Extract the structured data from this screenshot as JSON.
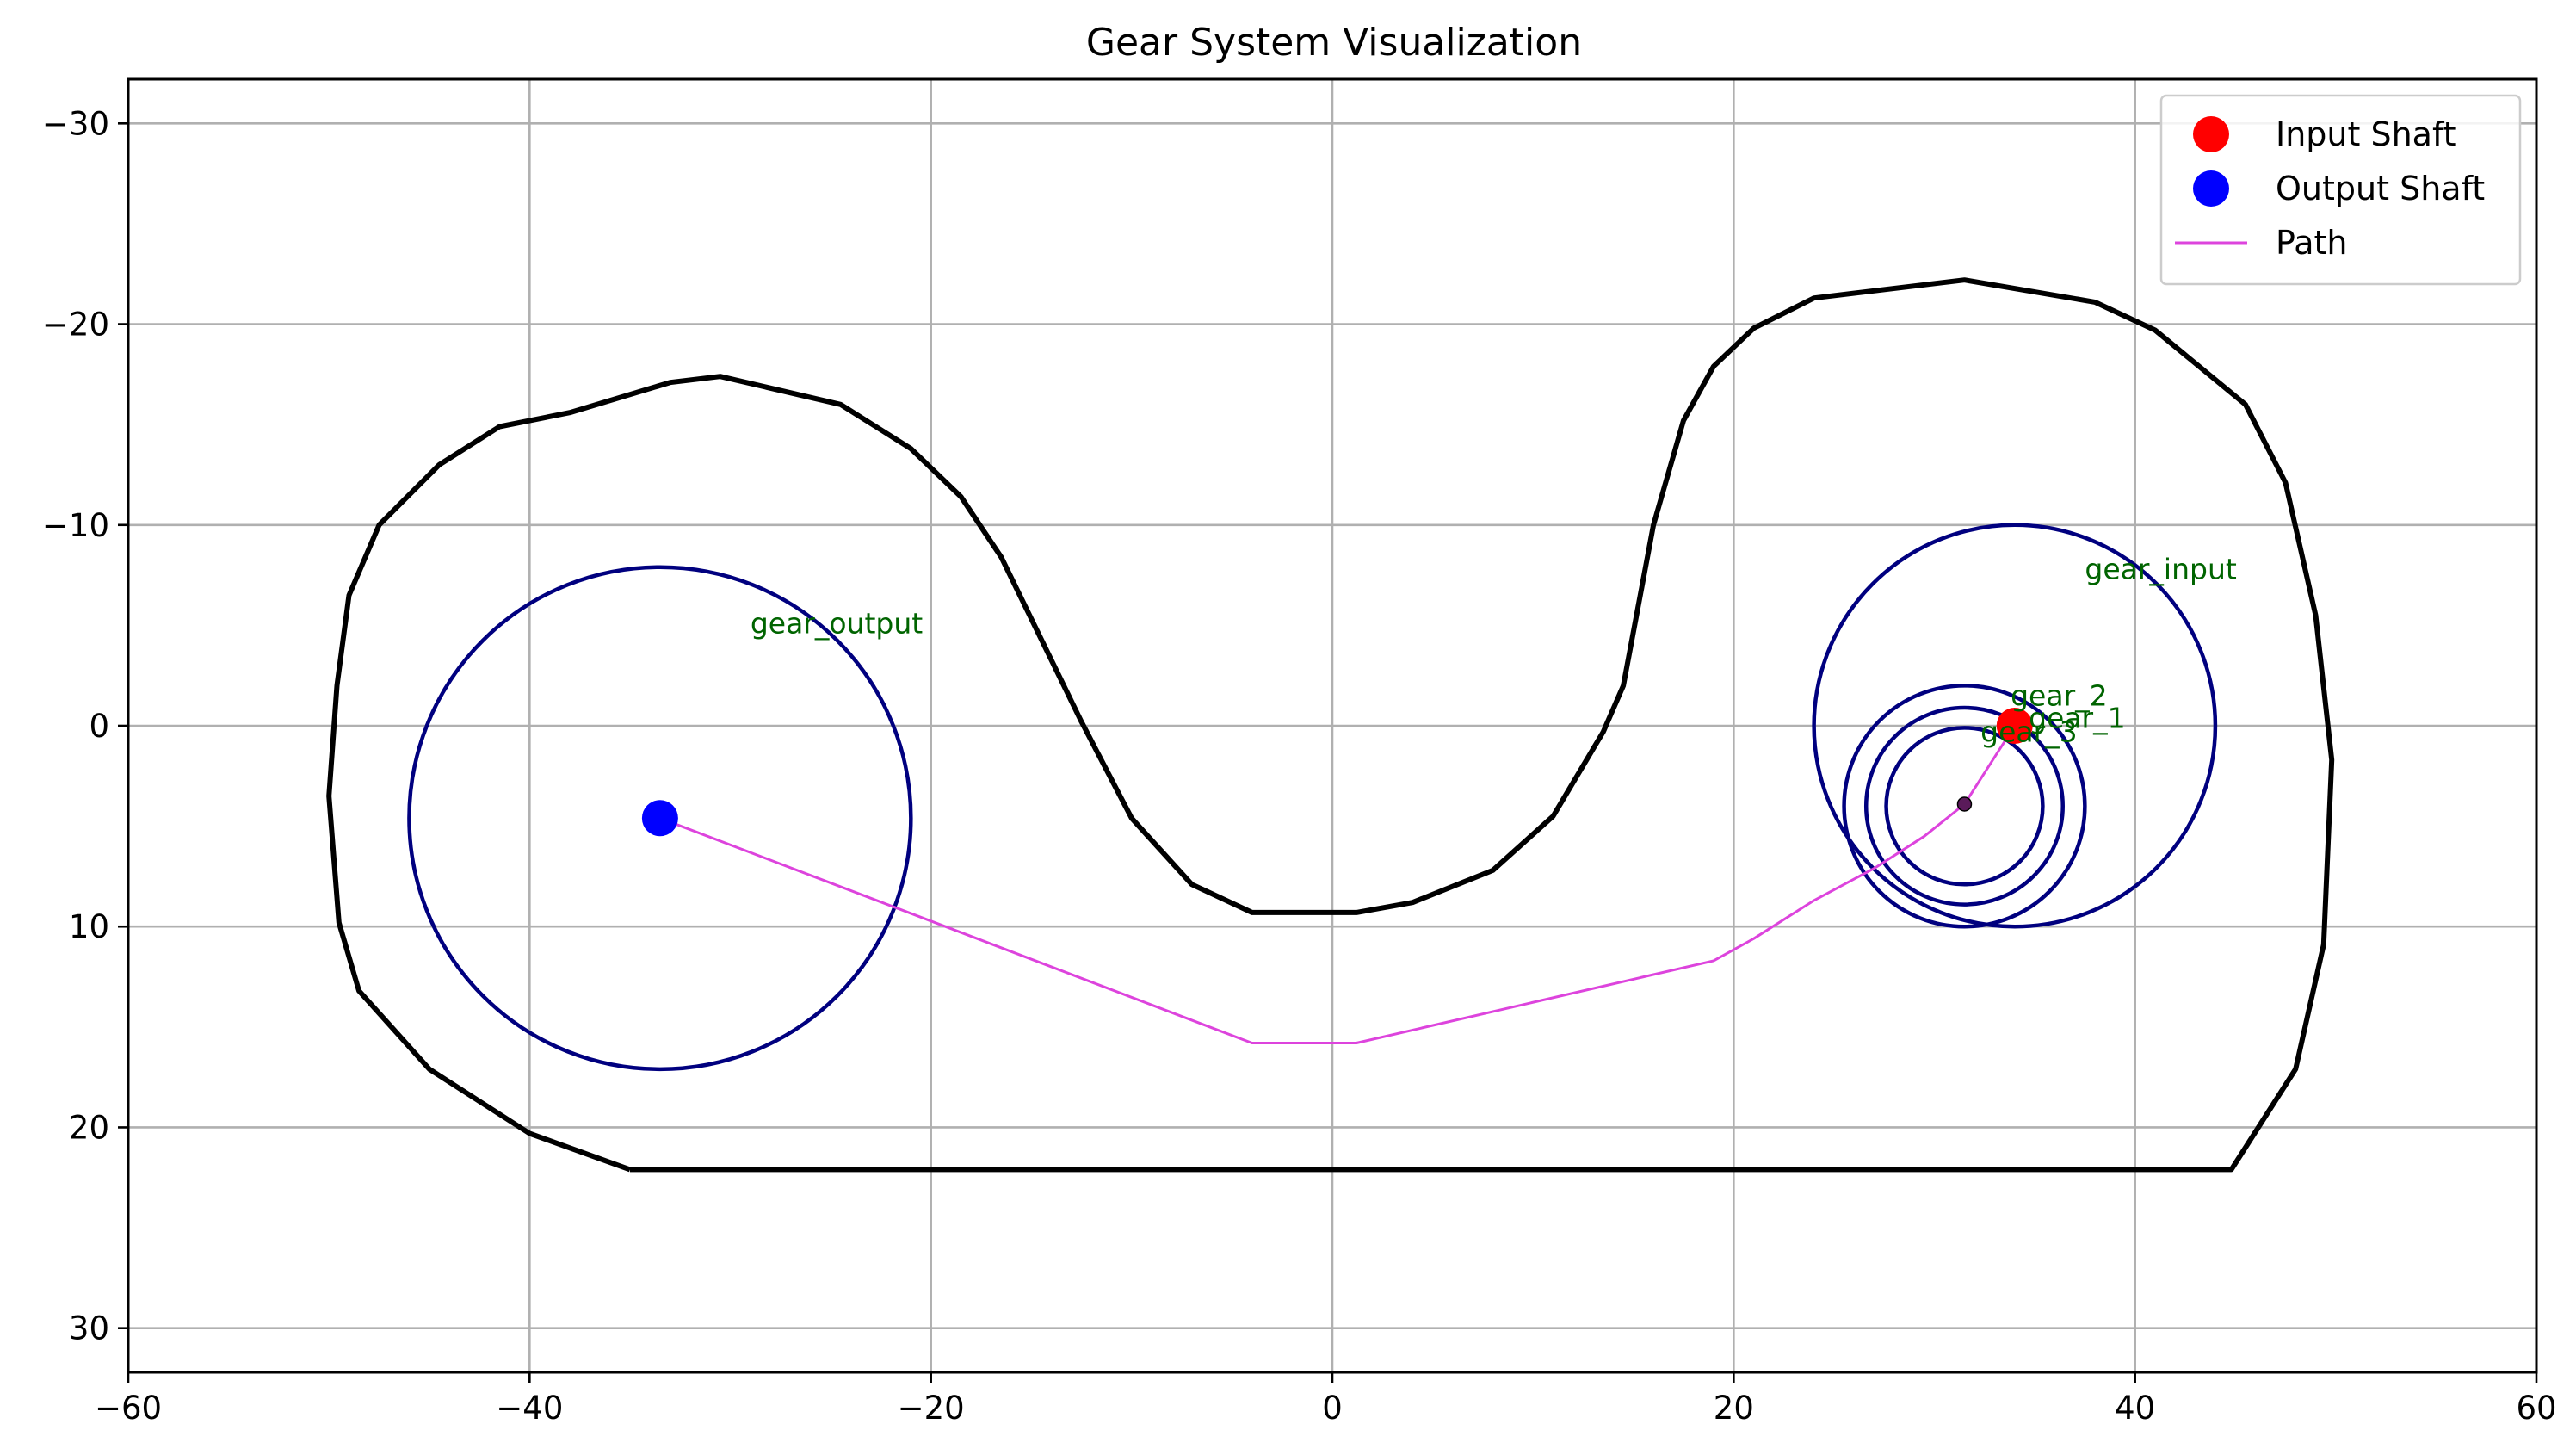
{
  "chart_data": {
    "type": "line",
    "title": "Gear System Visualization",
    "xlabel": "",
    "ylabel": "",
    "xlim": [
      -60,
      60
    ],
    "ylim": [
      32.2,
      -32.2
    ],
    "y_inverted": true,
    "x_ticks": [
      -60,
      -40,
      -20,
      0,
      20,
      40,
      60
    ],
    "x_tick_labels": [
      "−60",
      "−40",
      "−20",
      "0",
      "20",
      "40",
      "60"
    ],
    "y_ticks": [
      -30,
      -20,
      -10,
      0,
      10,
      20,
      30
    ],
    "y_tick_labels": [
      "−30",
      "−20",
      "−10",
      "0",
      "10",
      "20",
      "30"
    ],
    "grid": true,
    "legend": {
      "position": "top-right",
      "entries": [
        {
          "label": "Input Shaft",
          "color": "#ff0000",
          "marker": "dot"
        },
        {
          "label": "Output Shaft",
          "color": "#0000ff",
          "marker": "dot"
        },
        {
          "label": "Path",
          "color": "#dd44dd",
          "marker": "line"
        }
      ]
    },
    "boundary": {
      "color": "#000000",
      "points": [
        [
          -35,
          22.1
        ],
        [
          -40,
          20.3
        ],
        [
          -45,
          17.1
        ],
        [
          -48.5,
          13.2
        ],
        [
          -49.5,
          9.8
        ],
        [
          -50,
          3.5
        ],
        [
          -49.6,
          -2
        ],
        [
          -49,
          -6.5
        ],
        [
          -47.5,
          -10
        ],
        [
          -44.5,
          -13
        ],
        [
          -41.5,
          -14.9
        ],
        [
          -38,
          -15.6
        ],
        [
          -33,
          -17.1
        ],
        [
          -30.5,
          -17.4
        ],
        [
          -24.5,
          -16
        ],
        [
          -21,
          -13.8
        ],
        [
          -18.5,
          -11.4
        ],
        [
          -16.5,
          -8.4
        ],
        [
          -12.5,
          -0.2
        ],
        [
          -10,
          4.6
        ],
        [
          -7,
          7.9
        ],
        [
          -4,
          9.3
        ],
        [
          1.2,
          9.3
        ],
        [
          4,
          8.8
        ],
        [
          8,
          7.2
        ],
        [
          11,
          4.5
        ],
        [
          13.5,
          0.3
        ],
        [
          14.5,
          -2
        ],
        [
          16,
          -10
        ],
        [
          17.5,
          -15.2
        ],
        [
          19,
          -17.9
        ],
        [
          21,
          -19.8
        ],
        [
          24,
          -21.3
        ],
        [
          31.5,
          -22.2
        ],
        [
          38,
          -21.1
        ],
        [
          41,
          -19.7
        ],
        [
          45.5,
          -16
        ],
        [
          47.5,
          -12.1
        ],
        [
          49,
          -5.5
        ],
        [
          49.8,
          1.7
        ],
        [
          49.4,
          10.9
        ],
        [
          48,
          17.1
        ],
        [
          44.8,
          22.1
        ],
        [
          -35,
          22.1
        ]
      ]
    },
    "gears": [
      {
        "name": "gear_output",
        "cx": -33.5,
        "cy": 4.6,
        "r": 12.5,
        "label_x": -29,
        "label_y": -4.6
      },
      {
        "name": "gear_input",
        "cx": 34,
        "cy": 0,
        "r": 10,
        "label_x": 37.5,
        "label_y": -7.3
      },
      {
        "name": "gear_2",
        "cx": 31.5,
        "cy": 4,
        "r": 6,
        "label_x": 33.8,
        "label_y": -1
      },
      {
        "name": "gear_1",
        "cx": 31.5,
        "cy": 4,
        "r": 4.9,
        "label_x": 34.7,
        "label_y": 0.1
      },
      {
        "name": "gear_3",
        "cx": 31.5,
        "cy": 4,
        "r": 3.9,
        "label_x": 32.3,
        "label_y": 0.8
      }
    ],
    "gear_color": "#00007f",
    "input_shaft": {
      "x": 34,
      "y": 0,
      "color": "#ff0000"
    },
    "output_shaft": {
      "x": -33.5,
      "y": 4.6,
      "color": "#0000ff"
    },
    "center_marker": {
      "x": 31.5,
      "y": 3.9,
      "color": "#5a1a5a"
    },
    "path": {
      "color": "#dd44dd",
      "points": [
        [
          -33.5,
          4.6
        ],
        [
          -4,
          15.8
        ],
        [
          1.2,
          15.8
        ],
        [
          19,
          11.7
        ],
        [
          21,
          10.6
        ],
        [
          24,
          8.7
        ],
        [
          27,
          7.1
        ],
        [
          29.5,
          5.5
        ],
        [
          31.5,
          3.9
        ],
        [
          34,
          0
        ]
      ]
    }
  }
}
